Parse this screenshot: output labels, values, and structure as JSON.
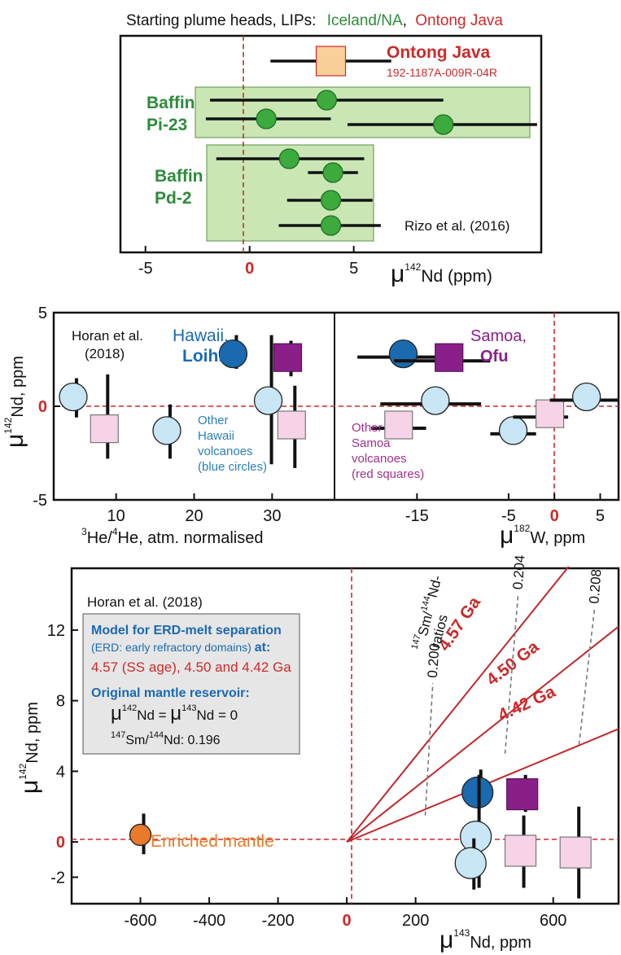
{
  "colors": {
    "green": "#2e8b3a",
    "red": "#cc2a2a",
    "crimson": "#c0282d",
    "blue": "#1a6ab0",
    "purple": "#8a1f8a",
    "magenta": "#a3308f",
    "lightblue": "#c8e6f5",
    "pink": "#f6d3e6",
    "orange": "#e87a2a",
    "peach": "#f9cf9a",
    "panelgreen": "#c9e6b4",
    "greenmarker": "#3daa3d"
  },
  "chart_data": [
    {
      "type": "scatter",
      "title_prefix": "Starting plume heads, LIPs:",
      "title_green": "Iceland/NA",
      "title_sep": ",",
      "title_red": "Ontong Java",
      "xlabel_mu": "μ",
      "xlabel_sup": "142",
      "xlabel_rest": "Nd (ppm)",
      "xlim": [
        -6.2,
        14.0
      ],
      "xticks": [
        -5,
        0,
        5
      ],
      "xtick_labels": [
        "-5",
        "0",
        "5"
      ],
      "source": "Rizo et al. (2016)",
      "groups": [
        {
          "name": "Ontong Java",
          "sublabel": "192-1187A-009R-04R",
          "marker": "square"
        },
        {
          "name_line1": "Baffin",
          "name_line2": "Pi-23"
        },
        {
          "name_line1": "Baffin",
          "name_line2": "Pd-2"
        }
      ],
      "points": [
        {
          "group": "Ontong Java",
          "x": 3.9,
          "xmin": 1.0,
          "xmax": 6.8,
          "row": 0
        },
        {
          "group": "Baffin Pi-23",
          "x": 3.7,
          "xmin": -1.9,
          "xmax": 9.3,
          "row": 1
        },
        {
          "group": "Baffin Pi-23",
          "x": 0.8,
          "xmin": -2.1,
          "xmax": 3.9,
          "row": 2
        },
        {
          "group": "Baffin Pi-23",
          "x": 9.3,
          "xmin": 4.7,
          "xmax": 13.8,
          "row": 3
        },
        {
          "group": "Baffin Pd-2",
          "x": 1.9,
          "xmin": -1.6,
          "xmax": 5.5,
          "row": 4
        },
        {
          "group": "Baffin Pd-2",
          "x": 4.0,
          "xmin": 2.8,
          "xmax": 5.2,
          "row": 5
        },
        {
          "group": "Baffin Pd-2",
          "x": 3.9,
          "xmin": 1.8,
          "xmax": 5.9,
          "row": 6
        },
        {
          "group": "Baffin Pd-2",
          "x": 3.9,
          "xmin": 1.4,
          "xmax": 6.3,
          "row": 7
        }
      ]
    },
    {
      "type": "scatter",
      "ylabel_mu": "μ",
      "ylabel_sup": "142",
      "ylabel_rest": "Nd, ppm",
      "ylim": [
        -5,
        5
      ],
      "yticks": [
        5,
        0,
        -5
      ],
      "ytick_labels": [
        "5",
        "0",
        "-5"
      ],
      "xlabel_sup1": "3",
      "xlabel_mid": "He/",
      "xlabel_sup2": "4",
      "xlabel_rest": "He, atm. normalised",
      "xlim": [
        2,
        38
      ],
      "xticks": [
        10,
        20,
        30
      ],
      "xtick_labels": [
        "10",
        "20",
        "30"
      ],
      "source_line1": "Horan et al.",
      "source_line2": "(2018)",
      "label_hawaii": "Hawaii,",
      "label_loihi": "Loihi",
      "label_other_hawaii": [
        "Other",
        "Hawaii",
        "volcanoes",
        "(blue circles)"
      ],
      "points": [
        {
          "series": "Loihi",
          "marker": "circle-blue",
          "x": 25,
          "y": 2.8,
          "ymin": 2.0,
          "ymax": 3.8
        },
        {
          "series": "Ofu",
          "marker": "square-purple",
          "x": 32,
          "y": 2.6,
          "ymin": 1.6,
          "ymax": 3.5
        },
        {
          "series": "Other Hawaii",
          "marker": "circle-light",
          "x": 4.5,
          "y": 0.5,
          "ymin": -0.6,
          "ymax": 1.5
        },
        {
          "series": "Other Samoa",
          "marker": "square-pink",
          "x": 8.5,
          "y": -1.2,
          "ymin": -2.8,
          "ymax": 1.7
        },
        {
          "series": "Other Hawaii",
          "marker": "circle-light",
          "x": 16.5,
          "y": -1.3,
          "ymin": -2.8,
          "ymax": 0.1
        },
        {
          "series": "Other Hawaii",
          "marker": "circle-light",
          "x": 29.5,
          "y": 0.3,
          "ymin": -3.1,
          "ymax": 3.8
        },
        {
          "series": "Other Samoa",
          "marker": "square-pink",
          "x": 32.5,
          "y": -1.0,
          "ymin": -3.3,
          "ymax": 1.1
        }
      ]
    },
    {
      "type": "scatter",
      "xlabel_mu": "μ",
      "xlabel_sup": "182",
      "xlabel_rest": "W, ppm",
      "xlim": [
        -24,
        7
      ],
      "xticks": [
        -15,
        -5,
        0,
        5
      ],
      "xtick_labels": [
        "-15",
        "-5",
        "0",
        "5"
      ],
      "label_samoa": "Samoa,",
      "label_ofu": "Ofu",
      "label_other_samoa": [
        "Other",
        "Samoa",
        "volcanoes",
        "(red squares)"
      ],
      "points": [
        {
          "series": "Loihi",
          "marker": "circle-blue",
          "x": -16.5,
          "y": 2.8,
          "xmin": -21.5,
          "xmax": -11.5
        },
        {
          "series": "Ofu",
          "marker": "square-purple",
          "x": -11.5,
          "y": 2.6,
          "xmin": -17.5,
          "xmax": -7.0
        },
        {
          "series": "Other Samoa",
          "marker": "square-pink",
          "x": -17.0,
          "y": -1.0,
          "xmin": -20.0,
          "xmax": -14.0
        },
        {
          "series": "Other Hawaii",
          "marker": "circle-light",
          "x": -13.0,
          "y": 0.3,
          "xmin": -19.0,
          "xmax": -8.0
        },
        {
          "series": "Other Hawaii",
          "marker": "circle-light",
          "x": -4.5,
          "y": -1.3,
          "xmin": -7.0,
          "xmax": -2.0
        },
        {
          "series": "Other Samoa",
          "marker": "square-pink",
          "x": -0.5,
          "y": -0.4,
          "xmin": -4.5,
          "xmax": 1.5
        },
        {
          "series": "Other Hawaii",
          "marker": "circle-light",
          "x": 3.5,
          "y": 0.5,
          "xmin": -0.5,
          "xmax": 7.0
        }
      ]
    },
    {
      "type": "scatter",
      "ylabel_mu": "μ",
      "ylabel_sup": "142",
      "ylabel_rest": "Nd, ppm",
      "ylim": [
        -3.5,
        15.5
      ],
      "yticks": [
        12,
        8,
        4,
        0,
        -2
      ],
      "ytick_labels": [
        "12",
        "8",
        "4",
        "0",
        "-2"
      ],
      "xlabel_mu": "μ",
      "xlabel_sup": "143",
      "xlabel_rest": "Nd, ppm",
      "xlim": [
        -800,
        790
      ],
      "xticks": [
        -600,
        -400,
        -200,
        0,
        200,
        600
      ],
      "xtick_labels": [
        "-600",
        "-400",
        "-200",
        "0",
        "200",
        "600"
      ],
      "source": "Horan et al. (2018)",
      "model_box": {
        "heading": "Model for ERD-melt separation",
        "line2": "(ERD: early refractory domains)",
        "line2_at": "at:",
        "line3": "4.57 (SS age), 4.50 and 4.42 Ga",
        "heading2": "Original mantle reservoir:",
        "eq_mu1": "μ",
        "eq_sup1": "142",
        "eq_mid": "Nd = ",
        "eq_mu2": "μ",
        "eq_sup2": "143",
        "eq_end": "Nd = 0",
        "ratio_sup1": "147",
        "ratio_mid": "Sm/",
        "ratio_sup2": "144",
        "ratio_end": "Nd: 0.196"
      },
      "isochrons": [
        {
          "label": "4.57 Ga",
          "x2": 645,
          "y2": 15.6
        },
        {
          "label": "4.50 Ga",
          "x2": 790,
          "y2": 12.2
        },
        {
          "label": "4.42 Ga",
          "x2": 790,
          "y2": 6.4
        }
      ],
      "ratio_label_sup1": "147",
      "ratio_label_mid": "Sm/",
      "ratio_label_sup2": "144",
      "ratio_label_end": "Nd-",
      "ratio_label_line2": "ratios",
      "ratio_lines": [
        {
          "label": "0.200",
          "x1": 228,
          "y1": 1.5,
          "x2": 250,
          "y2": 9.0
        },
        {
          "label": "0.204",
          "x1": 460,
          "y1": 5.0,
          "x2": 498,
          "y2": 14.0
        },
        {
          "label": "0.208",
          "x1": 675,
          "y1": 5.5,
          "x2": 720,
          "y2": 13.2
        }
      ],
      "enriched_label": "Enriched mantle",
      "points": [
        {
          "series": "Enriched mantle",
          "marker": "circle-orange",
          "x": -600,
          "y": 0.4,
          "ymin": -0.7,
          "ymax": 1.6
        },
        {
          "series": "Loihi",
          "marker": "circle-blue",
          "x": 380,
          "y": 2.8,
          "ymin": 2.0,
          "ymax": 4.1
        },
        {
          "series": "Ofu",
          "marker": "square-purple",
          "x": 510,
          "y": 2.7,
          "ymin": 1.7,
          "ymax": 3.8
        },
        {
          "series": "Other Hawaii",
          "marker": "circle-light",
          "x": 375,
          "y": 0.3,
          "ymin": -2.6,
          "ymax": 3.8
        },
        {
          "series": "Other Hawaii",
          "marker": "circle-light",
          "x": 360,
          "y": -1.2,
          "ymin": -2.7,
          "ymax": 0.2
        },
        {
          "series": "Other Samoa",
          "marker": "square-pink",
          "x": 505,
          "y": -0.5,
          "ymin": -2.6,
          "ymax": 1.5
        },
        {
          "series": "Other Samoa",
          "marker": "square-pink",
          "x": 665,
          "y": -0.6,
          "ymin": -3.2,
          "ymax": 2.0
        }
      ]
    }
  ]
}
